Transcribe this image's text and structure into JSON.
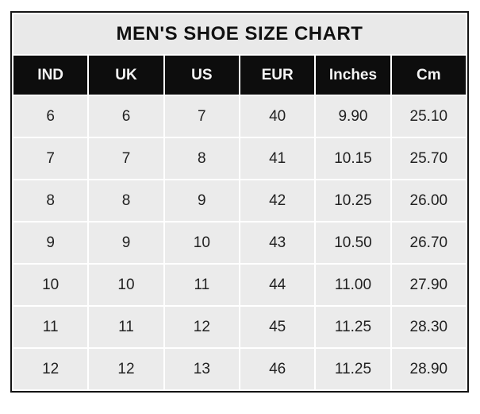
{
  "colors": {
    "page_bg": "#ffffff",
    "frame_border": "#141414",
    "title_bg": "#e9e9e9",
    "header_bg": "#0d0d0d",
    "header_text": "#f5f5f5",
    "row_bg": "#ebebeb",
    "gridline": "#ffffff",
    "cell_text": "#222222"
  },
  "chart_data": {
    "type": "table",
    "title": "MEN'S SHOE SIZE CHART",
    "columns": [
      "IND",
      "UK",
      "US",
      "EUR",
      "Inches",
      "Cm"
    ],
    "rows": [
      [
        "6",
        "6",
        "7",
        "40",
        "9.90",
        "25.10"
      ],
      [
        "7",
        "7",
        "8",
        "41",
        "10.15",
        "25.70"
      ],
      [
        "8",
        "8",
        "9",
        "42",
        "10.25",
        "26.00"
      ],
      [
        "9",
        "9",
        "10",
        "43",
        "10.50",
        "26.70"
      ],
      [
        "10",
        "10",
        "11",
        "44",
        "11.00",
        "27.90"
      ],
      [
        "11",
        "11",
        "12",
        "45",
        "11.25",
        "28.30"
      ],
      [
        "12",
        "12",
        "13",
        "46",
        "11.25",
        "28.90"
      ]
    ]
  }
}
